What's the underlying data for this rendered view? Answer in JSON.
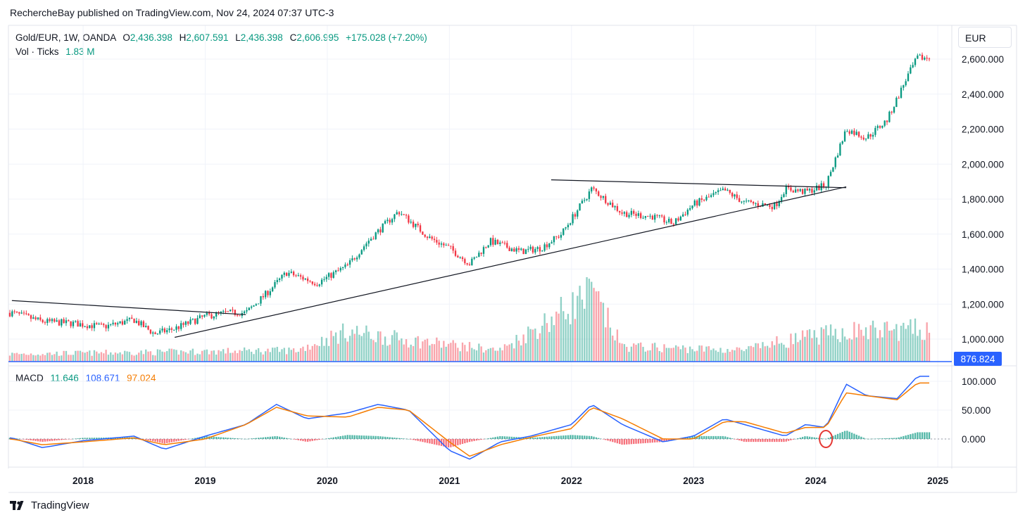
{
  "header": {
    "publisher_line": "RechercheBay published on TradingView.com, Nov 24, 2024 07:37 UTC-3"
  },
  "legend": {
    "symbol": "Gold/EUR, 1W, OANDA",
    "o_label": "O",
    "o_value": "2,436.398",
    "h_label": "H",
    "h_value": "2,607.591",
    "l_label": "L",
    "l_value": "2,436.398",
    "c_label": "C",
    "c_value": "2,606.995",
    "change": "+175.028 (+7.20%)",
    "vol_label": "Vol · Ticks",
    "vol_value": "1.83 M"
  },
  "macd_legend": {
    "label": "MACD",
    "histogram": "11.646",
    "macd": "108.671",
    "signal": "97.024"
  },
  "currency": "EUR",
  "price_marker": "876.824",
  "footer": {
    "logo_text": "TradingView"
  },
  "colors": {
    "up": "#089981",
    "down": "#f23645",
    "macd_line": "#2962ff",
    "signal_line": "#f57c00",
    "grid": "#f0f3fa",
    "baseline": "#2962ff",
    "annotation_circle": "#e53935"
  },
  "chart_data": [
    {
      "type": "candlestick",
      "title": "Gold/EUR, 1W, OANDA",
      "x_ticks": [
        "2018",
        "2019",
        "2020",
        "2021",
        "2022",
        "2023",
        "2024",
        "2025"
      ],
      "y_ticks": [
        "2,600.000",
        "2,400.000",
        "2,200.000",
        "2,000.000",
        "1,800.000",
        "1,600.000",
        "1,400.000",
        "1,200.000",
        "1,000.000"
      ],
      "ylim": [
        900,
        2700
      ],
      "price_path": [
        [
          "2017-06",
          1150
        ],
        [
          "2017-09",
          1100
        ],
        [
          "2017-12",
          1090
        ],
        [
          "2018-03",
          1070
        ],
        [
          "2018-06",
          1110
        ],
        [
          "2018-08",
          1030
        ],
        [
          "2018-10",
          1060
        ],
        [
          "2019-01",
          1130
        ],
        [
          "2019-03",
          1150
        ],
        [
          "2019-05",
          1150
        ],
        [
          "2019-07",
          1260
        ],
        [
          "2019-09",
          1380
        ],
        [
          "2019-12",
          1320
        ],
        [
          "2020-03",
          1420
        ],
        [
          "2020-05",
          1560
        ],
        [
          "2020-08",
          1730
        ],
        [
          "2020-11",
          1580
        ],
        [
          "2021-01",
          1520
        ],
        [
          "2021-03",
          1430
        ],
        [
          "2021-05",
          1560
        ],
        [
          "2021-08",
          1500
        ],
        [
          "2021-10",
          1520
        ],
        [
          "2021-12",
          1600
        ],
        [
          "2022-03",
          1860
        ],
        [
          "2022-06",
          1720
        ],
        [
          "2022-09",
          1700
        ],
        [
          "2022-11",
          1660
        ],
        [
          "2023-01",
          1770
        ],
        [
          "2023-04",
          1850
        ],
        [
          "2023-06",
          1780
        ],
        [
          "2023-09",
          1760
        ],
        [
          "2023-10",
          1860
        ],
        [
          "2023-12",
          1840
        ],
        [
          "2024-02",
          1880
        ],
        [
          "2024-04",
          2200
        ],
        [
          "2024-06",
          2150
        ],
        [
          "2024-08",
          2250
        ],
        [
          "2024-10",
          2500
        ],
        [
          "2024-11",
          2607
        ]
      ],
      "trendlines": [
        {
          "from": [
            "2017-06",
            1220
          ],
          "to": [
            "2019-05",
            1140
          ]
        },
        {
          "from": [
            "2018-10",
            1010
          ],
          "to": [
            "2024-04",
            1870
          ]
        },
        {
          "from": [
            "2021-11",
            1910
          ],
          "to": [
            "2024-04",
            1865
          ]
        }
      ]
    },
    {
      "type": "bar",
      "title": "Vol · Ticks",
      "last_value": "1.83 M",
      "volume_path": [
        [
          "2017-06",
          0.2
        ],
        [
          "2019-10",
          0.3
        ],
        [
          "2020-03",
          0.8
        ],
        [
          "2020-08",
          0.6
        ],
        [
          "2021-06",
          0.3
        ],
        [
          "2022-03",
          1.8
        ],
        [
          "2022-06",
          0.4
        ],
        [
          "2023-06",
          0.3
        ],
        [
          "2023-10",
          0.55
        ],
        [
          "2024-04",
          0.8
        ],
        [
          "2024-11",
          0.85
        ]
      ]
    },
    {
      "type": "line",
      "title": "MACD",
      "y_ticks": [
        "100.000",
        "50.000",
        "0.000"
      ],
      "ylim": [
        -50,
        120
      ],
      "series": [
        {
          "name": "MACD",
          "points": [
            [
              "2017-06",
              2
            ],
            [
              "2017-09",
              -15
            ],
            [
              "2018-01",
              -3
            ],
            [
              "2018-06",
              5
            ],
            [
              "2018-09",
              -18
            ],
            [
              "2019-01",
              5
            ],
            [
              "2019-05",
              25
            ],
            [
              "2019-08",
              60
            ],
            [
              "2019-11",
              35
            ],
            [
              "2020-03",
              45
            ],
            [
              "2020-06",
              60
            ],
            [
              "2020-09",
              50
            ],
            [
              "2021-01",
              -20
            ],
            [
              "2021-03",
              -35
            ],
            [
              "2021-06",
              -5
            ],
            [
              "2021-09",
              5
            ],
            [
              "2022-01",
              25
            ],
            [
              "2022-03",
              60
            ],
            [
              "2022-06",
              25
            ],
            [
              "2022-10",
              -5
            ],
            [
              "2023-01",
              5
            ],
            [
              "2023-04",
              35
            ],
            [
              "2023-06",
              25
            ],
            [
              "2023-10",
              5
            ],
            [
              "2023-12",
              25
            ],
            [
              "2024-02",
              20
            ],
            [
              "2024-04",
              95
            ],
            [
              "2024-06",
              75
            ],
            [
              "2024-09",
              70
            ],
            [
              "2024-11",
              108.671
            ]
          ]
        },
        {
          "name": "Signal",
          "points": [
            [
              "2017-06",
              0
            ],
            [
              "2017-09",
              -10
            ],
            [
              "2018-01",
              -5
            ],
            [
              "2018-06",
              2
            ],
            [
              "2018-09",
              -10
            ],
            [
              "2019-01",
              0
            ],
            [
              "2019-05",
              25
            ],
            [
              "2019-08",
              55
            ],
            [
              "2019-11",
              40
            ],
            [
              "2020-03",
              38
            ],
            [
              "2020-06",
              55
            ],
            [
              "2020-09",
              50
            ],
            [
              "2021-01",
              -5
            ],
            [
              "2021-03",
              -30
            ],
            [
              "2021-06",
              -10
            ],
            [
              "2021-09",
              3
            ],
            [
              "2022-01",
              18
            ],
            [
              "2022-03",
              55
            ],
            [
              "2022-06",
              35
            ],
            [
              "2022-10",
              0
            ],
            [
              "2023-01",
              0
            ],
            [
              "2023-04",
              30
            ],
            [
              "2023-06",
              30
            ],
            [
              "2023-10",
              10
            ],
            [
              "2023-12",
              20
            ],
            [
              "2024-02",
              20
            ],
            [
              "2024-04",
              80
            ],
            [
              "2024-06",
              75
            ],
            [
              "2024-09",
              68
            ],
            [
              "2024-11",
              97.024
            ]
          ]
        }
      ]
    }
  ]
}
